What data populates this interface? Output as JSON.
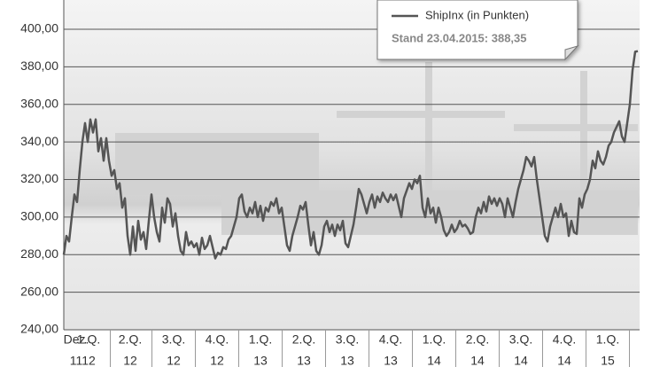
{
  "chart_data": {
    "type": "line",
    "x_labels": [
      "Dez.",
      "1.Q.",
      "2.Q.",
      "3.Q.",
      "4.Q.",
      "1.Q.",
      "2.Q.",
      "3.Q.",
      "4.Q.",
      "1.Q.",
      "2.Q.",
      "3.Q.",
      "4.Q.",
      "1.Q."
    ],
    "x_labels_year": [
      "11",
      "12",
      "12",
      "12",
      "12",
      "13",
      "13",
      "13",
      "13",
      "14",
      "14",
      "14",
      "14",
      "15"
    ],
    "annotation": "Stand 23.04.2015: 388,35",
    "ylim": [
      240,
      400
    ],
    "yticks": [
      {
        "value": 240,
        "label": "240,00"
      },
      {
        "value": 260,
        "label": "260,00"
      },
      {
        "value": 280,
        "label": "280,00"
      },
      {
        "value": 300,
        "label": "300,00"
      },
      {
        "value": 320,
        "label": "320,00"
      },
      {
        "value": 340,
        "label": "340,00"
      },
      {
        "value": 360,
        "label": "360,00"
      },
      {
        "value": 380,
        "label": "380,00"
      },
      {
        "value": 400,
        "label": "400,00"
      }
    ],
    "grid": true,
    "series": [
      {
        "name": "ShipInx (in Punkten)",
        "color": "#555555",
        "values": [
          280,
          290,
          287,
          300,
          312,
          308,
          325,
          340,
          350,
          340,
          352,
          345,
          352,
          335,
          342,
          330,
          342,
          330,
          322,
          325,
          315,
          318,
          305,
          310,
          290,
          280,
          295,
          282,
          298,
          288,
          292,
          283,
          298,
          312,
          300,
          292,
          287,
          305,
          297,
          310,
          307,
          295,
          302,
          290,
          282,
          280,
          292,
          285,
          287,
          284,
          286,
          280,
          289,
          283,
          285,
          290,
          284,
          278,
          281,
          280,
          284,
          283,
          288,
          290,
          295,
          300,
          310,
          312,
          303,
          300,
          305,
          302,
          308,
          300,
          306,
          298,
          305,
          303,
          308,
          306,
          310,
          302,
          305,
          295,
          285,
          282,
          290,
          295,
          300,
          306,
          304,
          308,
          296,
          285,
          292,
          282,
          280,
          285,
          295,
          298,
          292,
          296,
          290,
          296,
          293,
          298,
          286,
          284,
          290,
          296,
          305,
          315,
          312,
          307,
          302,
          308,
          312,
          305,
          311,
          308,
          313,
          310,
          308,
          312,
          309,
          312,
          306,
          300,
          310,
          314,
          318,
          315,
          320,
          318,
          322,
          305,
          300,
          310,
          302,
          305,
          297,
          305,
          300,
          293,
          290,
          292,
          296,
          292,
          294,
          298,
          295,
          296,
          294,
          291,
          292,
          300,
          305,
          302,
          308,
          303,
          311,
          307,
          310,
          306,
          310,
          307,
          300,
          310,
          305,
          300,
          308,
          315,
          320,
          325,
          332,
          330,
          327,
          332,
          320,
          310,
          300,
          290,
          287,
          295,
          300,
          305,
          300,
          307,
          300,
          302,
          290,
          298,
          292,
          291,
          310,
          305,
          312,
          315,
          320,
          330,
          326,
          335,
          330,
          328,
          332,
          338,
          340,
          345,
          348,
          351,
          343,
          340,
          350,
          360,
          378,
          388,
          388.35
        ]
      }
    ]
  }
}
